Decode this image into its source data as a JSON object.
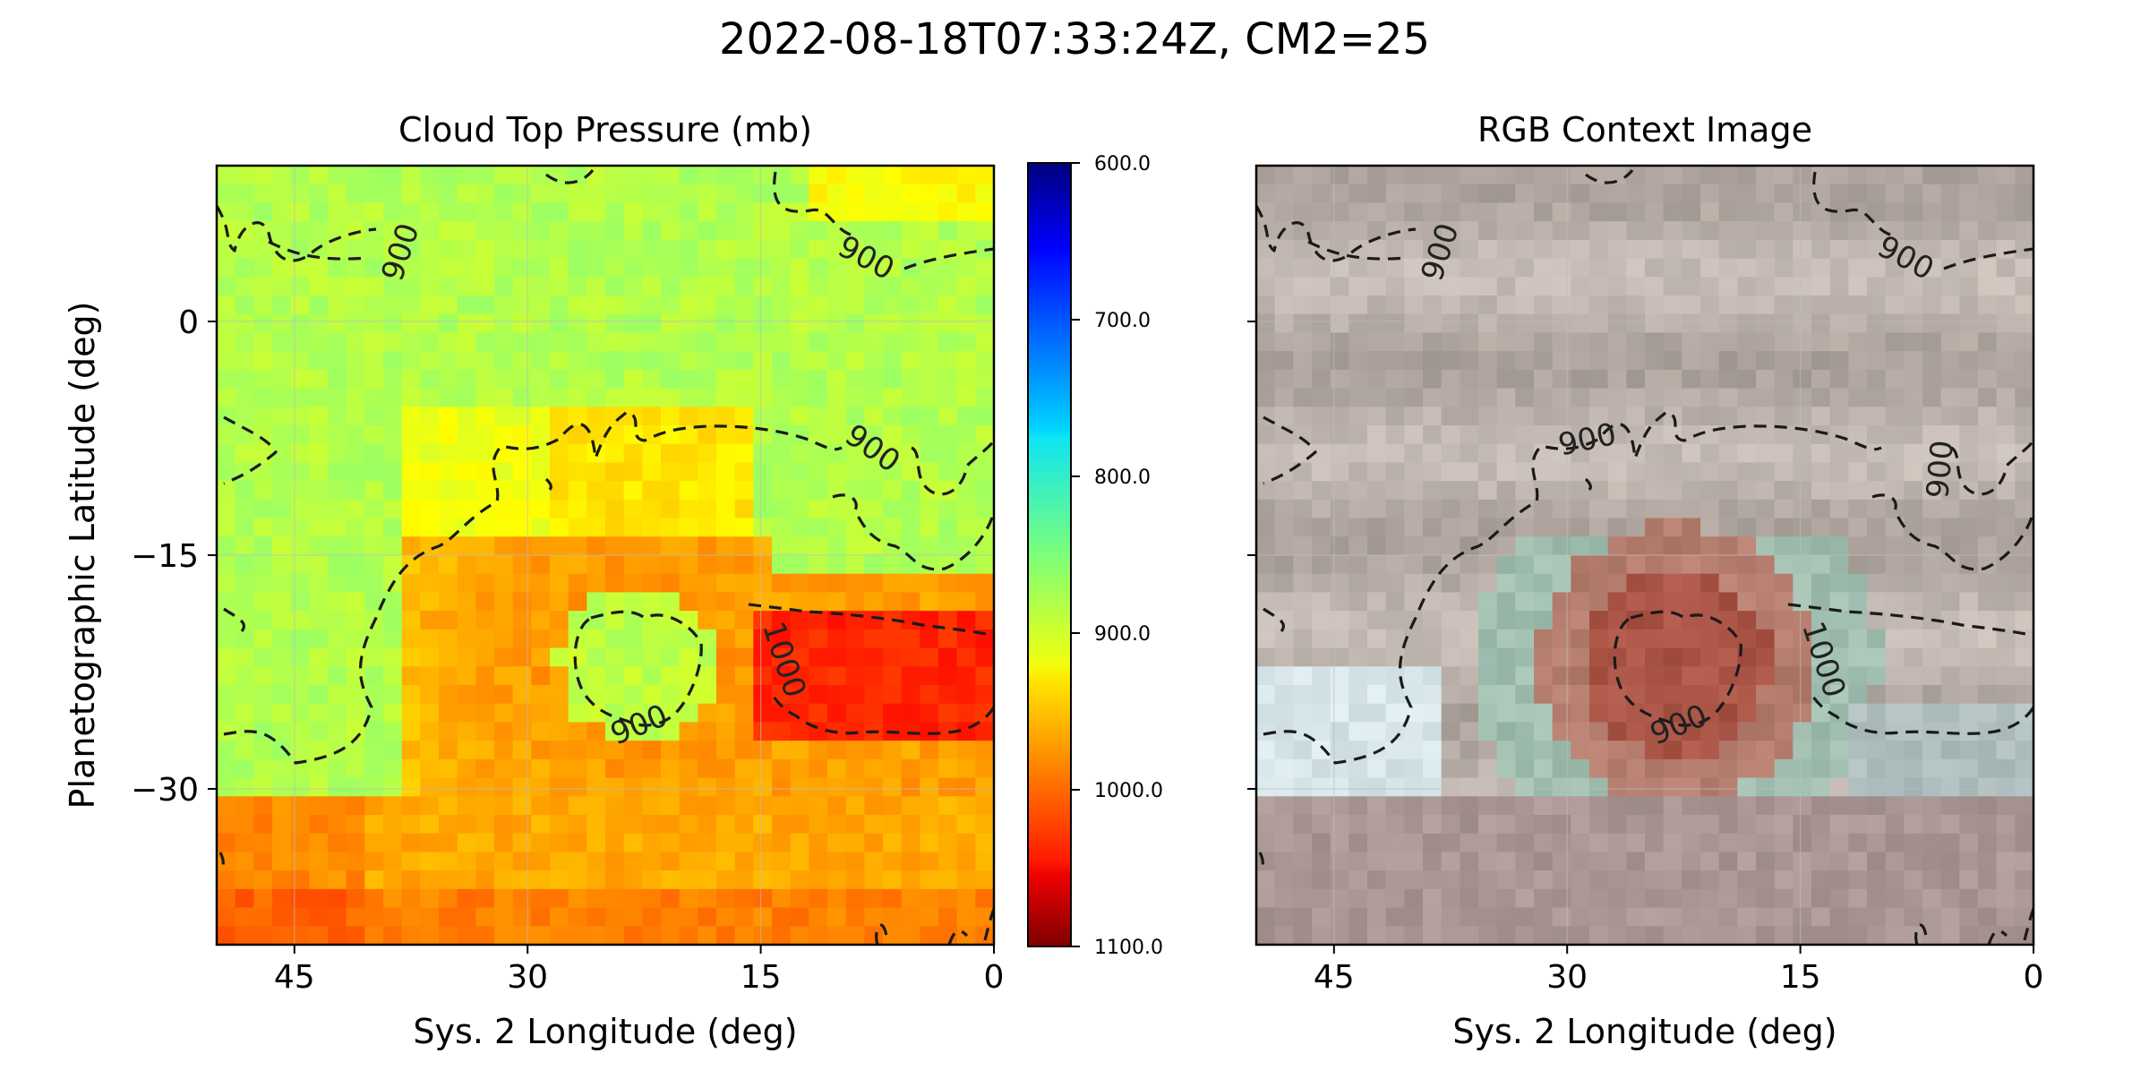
{
  "figure": {
    "title": "2022-08-18T07:33:24Z, CM2=25"
  },
  "chart_data": [
    {
      "type": "heatmap",
      "title": "Cloud Top Pressure (mb)",
      "xlabel": "Sys. 2 Longitude (deg)",
      "ylabel": "Planetographic Latitude (deg)",
      "x_ticks": [
        45,
        30,
        15,
        0
      ],
      "y_ticks": [
        0,
        -15,
        -30
      ],
      "xlim": [
        50,
        0
      ],
      "ylim": [
        -40,
        10
      ],
      "grid": true,
      "colormap": "jet",
      "colorbar": {
        "range": [
          600,
          1100
        ],
        "inverted": true,
        "ticks": [
          "600.0",
          "700.0",
          "800.0",
          "900.0",
          "1000.0",
          "1100.0"
        ]
      },
      "contour_levels": [
        900,
        1000
      ],
      "contour_labels": [
        "900",
        "900",
        "900",
        "1000",
        "900"
      ],
      "fields": {
        "background_mb": 875,
        "southern_band_mb": 955,
        "vortex_center": {
          "lon": 23,
          "lat": -22,
          "mb": 880
        },
        "vortex_ring_mb": 965,
        "eastern_region": {
          "lon_range": [
            0,
            15
          ],
          "lat_range": [
            -27,
            -18
          ],
          "mb": 1020
        }
      }
    },
    {
      "type": "heatmap",
      "title": "RGB Context Image",
      "xlabel": "Sys. 2 Longitude (deg)",
      "x_ticks": [
        45,
        30,
        15,
        0
      ],
      "xlim": [
        50,
        0
      ],
      "ylim": [
        -40,
        10
      ],
      "grid": true,
      "contour_levels": [
        900,
        1000
      ],
      "contour_labels": [
        "900",
        "900",
        "900",
        "900",
        "1000",
        "900"
      ]
    }
  ],
  "colors": {
    "contour": "#1a1a1a",
    "frame": "#000000"
  }
}
